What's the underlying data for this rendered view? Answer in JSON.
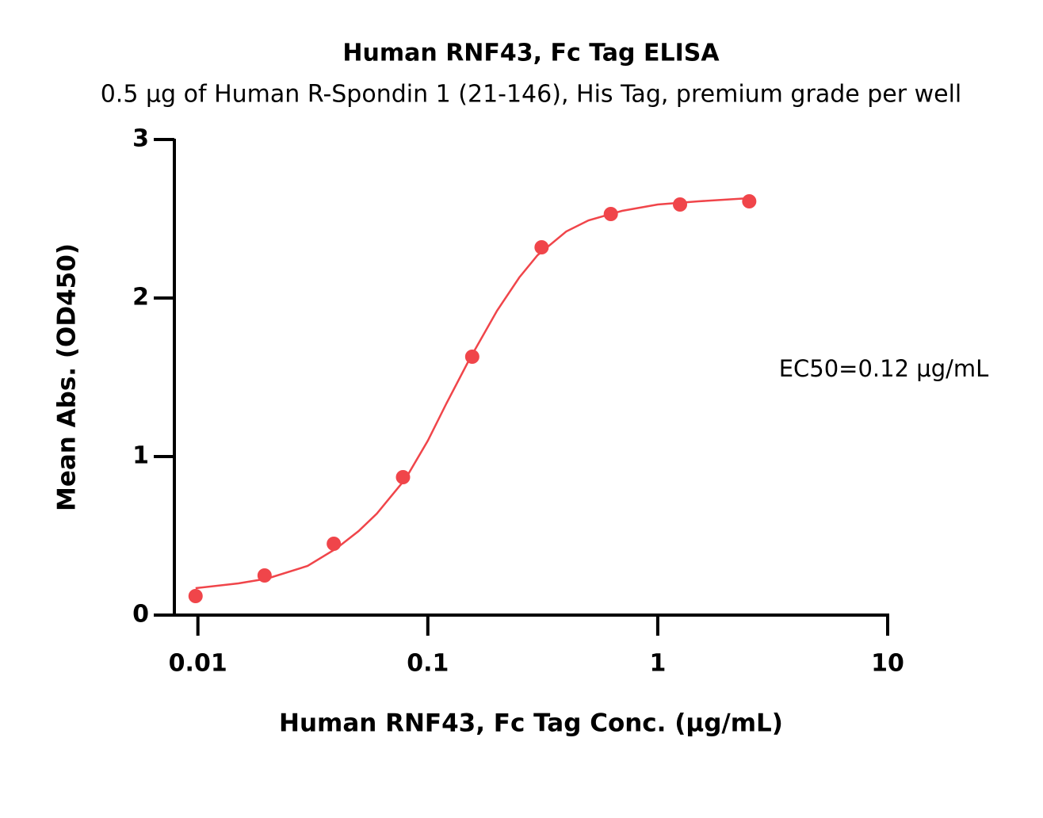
{
  "chart_data": {
    "type": "scatter",
    "title": "Human RNF43, Fc Tag ELISA",
    "subtitle": "0.5 μg of Human R-Spondin 1 (21-146), His Tag, premium grade per well",
    "x_label": "Human RNF43, Fc Tag Conc. (μg/mL)",
    "y_label": "Mean Abs. (OD450)",
    "annotation": "EC50=0.12 μg/mL",
    "x_scale": "log",
    "xlim": [
      0.0079,
      10
    ],
    "xticks": [
      0.01,
      0.1,
      1,
      10
    ],
    "ylim": [
      0,
      3
    ],
    "yticks": [
      0,
      1,
      2,
      3
    ],
    "series": [
      {
        "type": "scatter",
        "color": "#f0454a",
        "x": [
          0.00977,
          0.0195,
          0.039,
          0.078,
          0.156,
          0.3125,
          0.625,
          1.25,
          2.5
        ],
        "values": [
          0.12,
          0.25,
          0.45,
          0.87,
          1.63,
          2.32,
          2.53,
          2.59,
          2.61
        ]
      },
      {
        "type": "line",
        "color": "#f0454a",
        "x": [
          0.00977,
          0.015,
          0.02,
          0.03,
          0.04,
          0.05,
          0.06,
          0.08,
          0.1,
          0.12,
          0.15,
          0.2,
          0.25,
          0.3,
          0.4,
          0.5,
          0.7,
          1,
          1.5,
          2.5
        ],
        "values": [
          0.17,
          0.2,
          0.23,
          0.31,
          0.42,
          0.53,
          0.64,
          0.86,
          1.1,
          1.33,
          1.6,
          1.92,
          2.13,
          2.27,
          2.42,
          2.49,
          2.55,
          2.59,
          2.61,
          2.63
        ]
      }
    ]
  }
}
